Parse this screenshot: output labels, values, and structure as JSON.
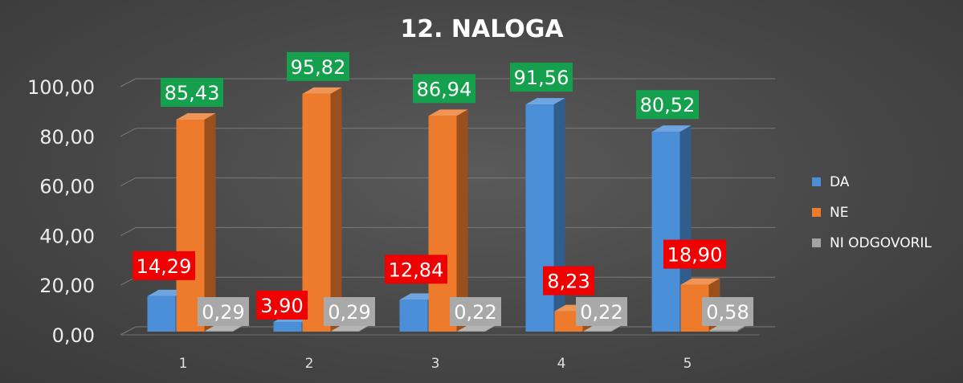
{
  "chart_data": {
    "type": "bar",
    "title": "12. NALOGA",
    "xlabel": "",
    "ylabel": "",
    "ylim": [
      0,
      100
    ],
    "yticks": [
      "0,00",
      "20,00",
      "40,00",
      "60,00",
      "80,00",
      "100,00"
    ],
    "categories": [
      "1",
      "2",
      "3",
      "4",
      "5"
    ],
    "series": [
      {
        "name": "DA",
        "values": [
          14.29,
          3.9,
          12.84,
          91.56,
          80.52
        ],
        "labels": [
          "14,29",
          "3,90",
          "12,84",
          "91,56",
          "80,52"
        ]
      },
      {
        "name": "NE",
        "values": [
          85.43,
          95.82,
          86.94,
          8.23,
          18.9
        ],
        "labels": [
          "85,43",
          "95,82",
          "86,94",
          "8,23",
          "18,90"
        ]
      },
      {
        "name": "NI ODGOVORIL",
        "values": [
          0.29,
          0.29,
          0.22,
          0.22,
          0.58
        ],
        "labels": [
          "0,29",
          "0,29",
          "0,22",
          "0,22",
          "0,58"
        ]
      }
    ],
    "grid": true,
    "legend_position": "right",
    "colors": {
      "DA": "#4a8fd8",
      "NE": "#ee7a2c",
      "NI ODGOVORIL": "#a3a3a3",
      "label_high": "#14a04c",
      "label_low": "#f00000",
      "label_none": "#a9a9a9"
    }
  }
}
